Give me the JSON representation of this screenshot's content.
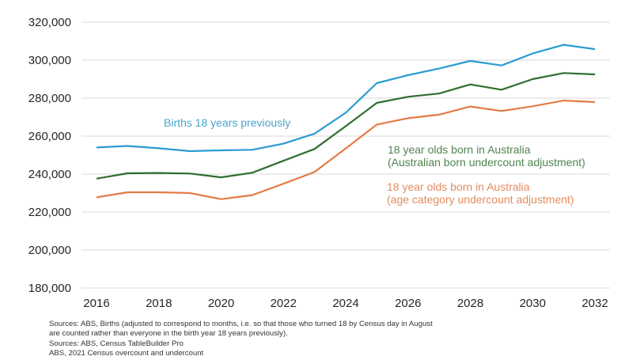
{
  "chart_data": {
    "type": "line",
    "title": "",
    "xlabel": "",
    "ylabel": "",
    "x": [
      2016,
      2017,
      2018,
      2019,
      2020,
      2021,
      2022,
      2023,
      2024,
      2025,
      2026,
      2027,
      2028,
      2029,
      2030,
      2031,
      2032
    ],
    "xticks": [
      2016,
      2018,
      2020,
      2022,
      2024,
      2026,
      2028,
      2030,
      2032
    ],
    "xtick_labels": [
      "2016",
      "2018",
      "2020",
      "2022",
      "2024",
      "2026",
      "2028",
      "2030",
      "2032"
    ],
    "xlim": [
      2016,
      2032
    ],
    "ylim": [
      180000,
      320000
    ],
    "yticks": [
      180000,
      200000,
      220000,
      240000,
      260000,
      280000,
      300000,
      320000
    ],
    "ytick_labels": [
      "180,000",
      "200,000",
      "220,000",
      "240,000",
      "260,000",
      "280,000",
      "300,000",
      "320,000"
    ],
    "grid": "horizontal",
    "legend": "inline labels next to lines",
    "series": [
      {
        "name": "Births 18 years previously",
        "label_lines": [
          "Births 18 years previously"
        ],
        "color": "#2b9bd1",
        "label_color": "#4aa6cc",
        "values": [
          254000,
          254800,
          253600,
          252100,
          252500,
          252800,
          256000,
          261300,
          272300,
          287900,
          292100,
          295600,
          299600,
          297200,
          303500,
          308100,
          305800
        ]
      },
      {
        "name": "18 year olds born in Australia (Australian born undercount adjustment)",
        "label_lines": [
          "18 year olds born in Australia",
          "(Australian born undercount adjustment)"
        ],
        "color": "#2f6e2f",
        "label_color": "#4f8450",
        "values": [
          237600,
          240400,
          240600,
          240300,
          238300,
          240700,
          247000,
          253200,
          265200,
          277500,
          280700,
          282400,
          287200,
          284400,
          290000,
          293200,
          292500
        ]
      },
      {
        "name": "18 year olds born in Australia (age category undercount adjustment)",
        "label_lines": [
          "18 year olds born in Australia",
          "(age category undercount adjustment)"
        ],
        "color": "#e47b47",
        "label_color": "#e38c5e",
        "values": [
          227700,
          230400,
          230400,
          230000,
          226800,
          228900,
          234900,
          241100,
          253500,
          266100,
          269400,
          271300,
          275600,
          273200,
          275700,
          278700,
          277900
        ]
      }
    ]
  },
  "footer": {
    "lines": [
      "Sources: ABS, Births (adjusted to correspond to months, i.e. so that those who turned 18 by Census day in August",
      "are counted rather than everyone in the birth year 18 years previously).",
      "Sources: ABS, Census TableBuilder Pro",
      "ABS, 2021 Census overcount and undercount"
    ]
  }
}
